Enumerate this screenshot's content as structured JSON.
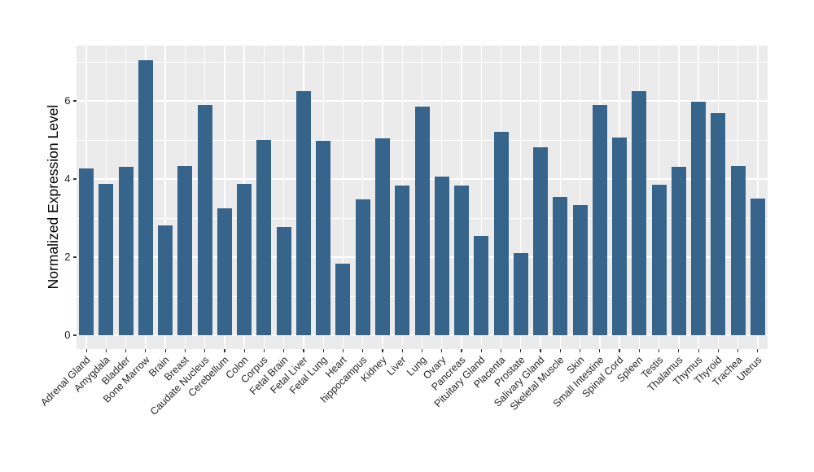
{
  "chart_data": {
    "type": "bar",
    "title": "",
    "xlabel": "",
    "ylabel": "Normalized Expression Level",
    "categories": [
      "Adrenal Gland",
      "Amygdala",
      "Bladder",
      "Bone Marrow",
      "Brain",
      "Breast",
      "Caudate Nucleus",
      "Cerebellum",
      "Colon",
      "Corpus",
      "Fetal Brain",
      "Fetal Liver",
      "Fetal Lung",
      "Heart",
      "hippocampus",
      "Kidney",
      "Liver",
      "Lung",
      "Ovary",
      "Pancreas",
      "Pituitary Gland",
      "Placenta",
      "Prostate",
      "Salivary Gland",
      "Skeletal Muscle",
      "Skin",
      "Small Intestine",
      "Spinal Cord",
      "Spleen",
      "Testis",
      "Thalamus",
      "Thymus",
      "Thyroid",
      "Trachea",
      "Uterus"
    ],
    "values": [
      4.28,
      3.87,
      4.31,
      7.05,
      2.81,
      4.34,
      5.9,
      3.26,
      3.88,
      5.0,
      2.78,
      6.25,
      4.97,
      1.84,
      3.47,
      5.05,
      3.83,
      5.86,
      4.06,
      3.83,
      2.55,
      5.2,
      2.1,
      4.82,
      3.54,
      3.33,
      5.9,
      5.07,
      6.25,
      3.85,
      4.32,
      5.98,
      5.69,
      4.34,
      3.49
    ],
    "yticks": [
      0,
      2,
      4,
      6
    ],
    "yticks_minor": [
      1,
      3,
      5,
      7
    ],
    "ylim": [
      0,
      7.4
    ],
    "grid": true,
    "legend": "none",
    "bar_color": "#36648B",
    "panel_bg": "#EBEBEB",
    "grid_color": "#FFFFFF",
    "axis_text_color": "#262626"
  }
}
